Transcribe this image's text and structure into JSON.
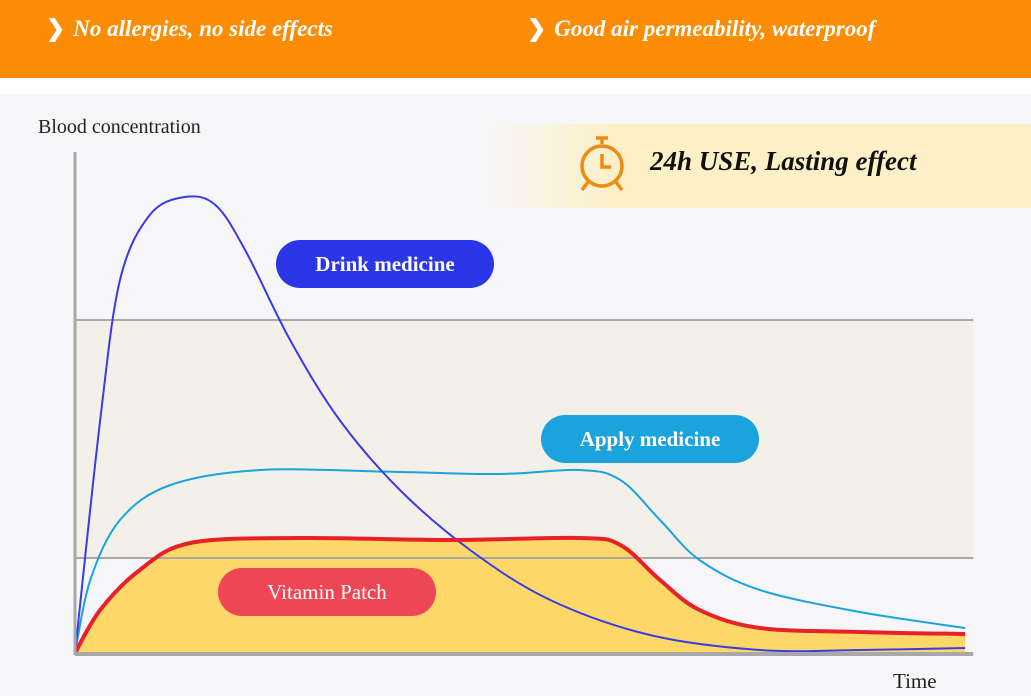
{
  "features": [
    "No allergies, no side effects",
    "Good air permeability, waterproof"
  ],
  "banner": {
    "text": "24h USE, Lasting effect",
    "icon": "alarm-clock-icon"
  },
  "colors": {
    "orange": "#fb8d06",
    "drink": "#3a3ae8",
    "apply": "#1aa3dd",
    "patch": "#e8202a",
    "patch_fill": "#fdd868",
    "patch_label": "#ef4656",
    "drink_label": "#2a36e8",
    "apply_label": "#1aa3dd"
  },
  "chart_data": {
    "type": "line",
    "xlabel": "Time",
    "ylabel": "Blood concentration",
    "xlim": [
      0,
      100
    ],
    "ylim": [
      0,
      100
    ],
    "reference_lines": [
      66.6,
      19
    ],
    "series": [
      {
        "name": "Drink medicine",
        "x": [
          0,
          2.8,
          5,
          8.3,
          12.2,
          15.6,
          18.9,
          23.9,
          29.4,
          36.1,
          43.9,
          52.8,
          63.9,
          76.1,
          87.2,
          98.9
        ],
        "y": [
          0,
          46.6,
          74.6,
          87.6,
          91.2,
          89.6,
          80.6,
          62.6,
          46.6,
          32.6,
          20.6,
          10.6,
          3.6,
          0.6,
          0.6,
          1
        ]
      },
      {
        "name": "Apply medicine",
        "x": [
          0,
          1.7,
          5,
          10.6,
          20.6,
          36.1,
          47.2,
          56.1,
          60.6,
          65,
          69.4,
          76.1,
          87.2,
          98.9
        ],
        "y": [
          0,
          14.6,
          26.6,
          33.6,
          36.6,
          36.2,
          35.8,
          36.6,
          34.6,
          26.6,
          18.6,
          12.6,
          8.2,
          5
        ]
      },
      {
        "name": "Vitamin Patch",
        "x": [
          0,
          2.8,
          7.2,
          12.8,
          25,
          41.7,
          56.1,
          60.6,
          65,
          69.4,
          76.1,
          87.2,
          98.9
        ],
        "y": [
          0,
          8.6,
          16.6,
          22,
          23,
          22.6,
          23,
          21.6,
          14.6,
          8.6,
          5,
          4.2,
          3.8
        ]
      }
    ]
  }
}
